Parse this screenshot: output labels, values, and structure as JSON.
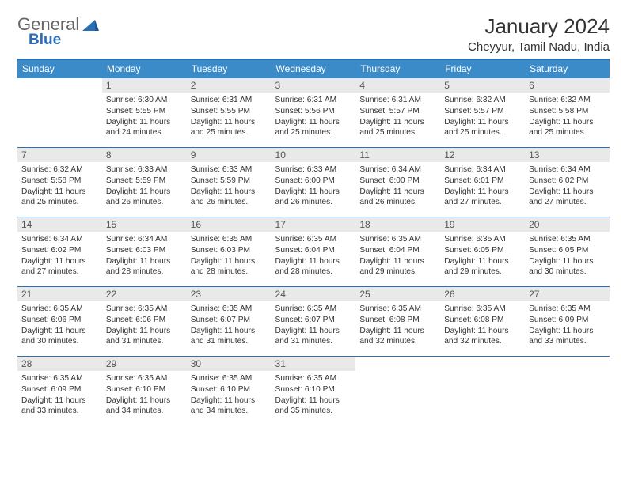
{
  "logo": {
    "text1": "General",
    "text2": "Blue"
  },
  "header": {
    "title": "January 2024",
    "location": "Cheyyur, Tamil Nadu, India"
  },
  "colors": {
    "header_bg": "#3b8bc9",
    "header_border": "#2a6fb5",
    "daynum_bg": "#e9e9e9",
    "text": "#333333"
  },
  "weekdays": [
    "Sunday",
    "Monday",
    "Tuesday",
    "Wednesday",
    "Thursday",
    "Friday",
    "Saturday"
  ],
  "first_day_offset": 1,
  "days": [
    {
      "n": 1,
      "rise": "6:30 AM",
      "set": "5:55 PM",
      "light": "11 hours and 24 minutes."
    },
    {
      "n": 2,
      "rise": "6:31 AM",
      "set": "5:55 PM",
      "light": "11 hours and 25 minutes."
    },
    {
      "n": 3,
      "rise": "6:31 AM",
      "set": "5:56 PM",
      "light": "11 hours and 25 minutes."
    },
    {
      "n": 4,
      "rise": "6:31 AM",
      "set": "5:57 PM",
      "light": "11 hours and 25 minutes."
    },
    {
      "n": 5,
      "rise": "6:32 AM",
      "set": "5:57 PM",
      "light": "11 hours and 25 minutes."
    },
    {
      "n": 6,
      "rise": "6:32 AM",
      "set": "5:58 PM",
      "light": "11 hours and 25 minutes."
    },
    {
      "n": 7,
      "rise": "6:32 AM",
      "set": "5:58 PM",
      "light": "11 hours and 25 minutes."
    },
    {
      "n": 8,
      "rise": "6:33 AM",
      "set": "5:59 PM",
      "light": "11 hours and 26 minutes."
    },
    {
      "n": 9,
      "rise": "6:33 AM",
      "set": "5:59 PM",
      "light": "11 hours and 26 minutes."
    },
    {
      "n": 10,
      "rise": "6:33 AM",
      "set": "6:00 PM",
      "light": "11 hours and 26 minutes."
    },
    {
      "n": 11,
      "rise": "6:34 AM",
      "set": "6:00 PM",
      "light": "11 hours and 26 minutes."
    },
    {
      "n": 12,
      "rise": "6:34 AM",
      "set": "6:01 PM",
      "light": "11 hours and 27 minutes."
    },
    {
      "n": 13,
      "rise": "6:34 AM",
      "set": "6:02 PM",
      "light": "11 hours and 27 minutes."
    },
    {
      "n": 14,
      "rise": "6:34 AM",
      "set": "6:02 PM",
      "light": "11 hours and 27 minutes."
    },
    {
      "n": 15,
      "rise": "6:34 AM",
      "set": "6:03 PM",
      "light": "11 hours and 28 minutes."
    },
    {
      "n": 16,
      "rise": "6:35 AM",
      "set": "6:03 PM",
      "light": "11 hours and 28 minutes."
    },
    {
      "n": 17,
      "rise": "6:35 AM",
      "set": "6:04 PM",
      "light": "11 hours and 28 minutes."
    },
    {
      "n": 18,
      "rise": "6:35 AM",
      "set": "6:04 PM",
      "light": "11 hours and 29 minutes."
    },
    {
      "n": 19,
      "rise": "6:35 AM",
      "set": "6:05 PM",
      "light": "11 hours and 29 minutes."
    },
    {
      "n": 20,
      "rise": "6:35 AM",
      "set": "6:05 PM",
      "light": "11 hours and 30 minutes."
    },
    {
      "n": 21,
      "rise": "6:35 AM",
      "set": "6:06 PM",
      "light": "11 hours and 30 minutes."
    },
    {
      "n": 22,
      "rise": "6:35 AM",
      "set": "6:06 PM",
      "light": "11 hours and 31 minutes."
    },
    {
      "n": 23,
      "rise": "6:35 AM",
      "set": "6:07 PM",
      "light": "11 hours and 31 minutes."
    },
    {
      "n": 24,
      "rise": "6:35 AM",
      "set": "6:07 PM",
      "light": "11 hours and 31 minutes."
    },
    {
      "n": 25,
      "rise": "6:35 AM",
      "set": "6:08 PM",
      "light": "11 hours and 32 minutes."
    },
    {
      "n": 26,
      "rise": "6:35 AM",
      "set": "6:08 PM",
      "light": "11 hours and 32 minutes."
    },
    {
      "n": 27,
      "rise": "6:35 AM",
      "set": "6:09 PM",
      "light": "11 hours and 33 minutes."
    },
    {
      "n": 28,
      "rise": "6:35 AM",
      "set": "6:09 PM",
      "light": "11 hours and 33 minutes."
    },
    {
      "n": 29,
      "rise": "6:35 AM",
      "set": "6:10 PM",
      "light": "11 hours and 34 minutes."
    },
    {
      "n": 30,
      "rise": "6:35 AM",
      "set": "6:10 PM",
      "light": "11 hours and 34 minutes."
    },
    {
      "n": 31,
      "rise": "6:35 AM",
      "set": "6:10 PM",
      "light": "11 hours and 35 minutes."
    }
  ],
  "labels": {
    "sunrise": "Sunrise:",
    "sunset": "Sunset:",
    "daylight": "Daylight:"
  }
}
